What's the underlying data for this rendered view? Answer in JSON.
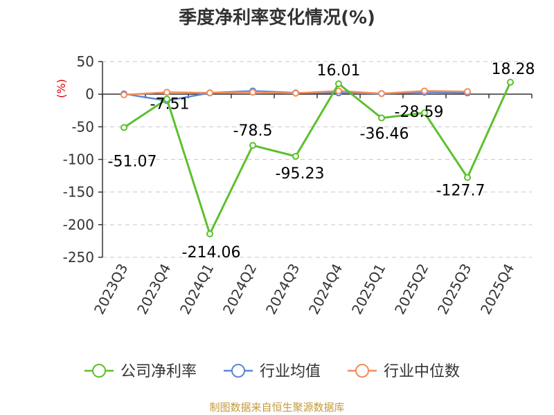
{
  "chart_data": {
    "type": "line",
    "title": "季度净利率变化情况(%)",
    "y_unit_label": "(%)",
    "categories": [
      "2023Q3",
      "2023Q4",
      "2024Q1",
      "2024Q2",
      "2024Q3",
      "2024Q4",
      "2025Q1",
      "2025Q2",
      "2025Q3",
      "2025Q4"
    ],
    "ylim": [
      -250,
      50
    ],
    "yticks": [
      50,
      0,
      -50,
      -100,
      -150,
      -200,
      -250
    ],
    "grid": true,
    "legend_position": "bottom",
    "series": [
      {
        "name": "公司净利率",
        "color": "#5cc02c",
        "values": [
          -51.07,
          -7.51,
          -214.06,
          -78.5,
          -95.23,
          16.01,
          -36.46,
          -28.59,
          -127.7,
          18.28
        ],
        "labels": [
          "-51.07",
          "-7.51",
          "-214.06",
          "-78.5",
          "-95.23",
          "16.01",
          "-36.46",
          "-28.59",
          "-127.7",
          "18.28"
        ]
      },
      {
        "name": "行业均值",
        "color": "#5b86d6",
        "values": [
          0.5,
          -10,
          2,
          5,
          2,
          2,
          1,
          3,
          2,
          null
        ]
      },
      {
        "name": "行业中位数",
        "color": "#f28c5c",
        "values": [
          -1,
          3,
          2,
          3,
          1.5,
          5,
          1,
          5,
          4,
          null
        ]
      }
    ]
  },
  "source_text": "制图数据来自恒生聚源数据库"
}
